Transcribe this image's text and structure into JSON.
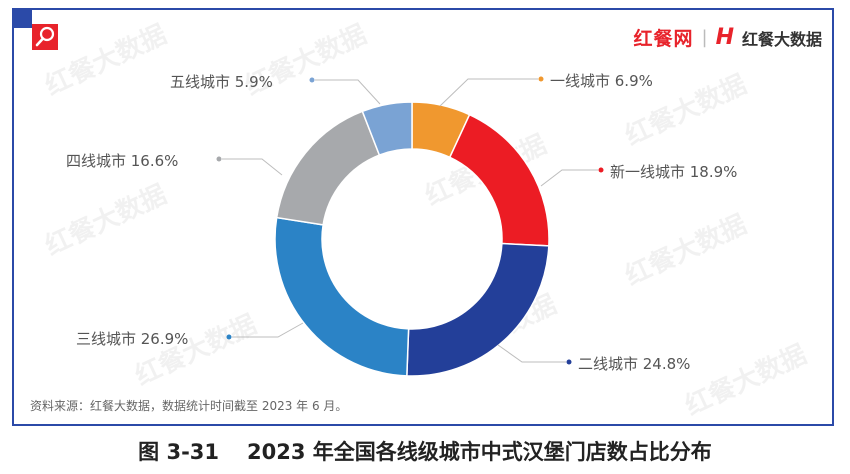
{
  "header": {
    "brand_primary": "红餐网",
    "brand_separator": "|",
    "brand_logo_glyph": "H",
    "brand_secondary": "红餐大数据",
    "search_icon": "search-icon"
  },
  "watermark": "红餐大数据",
  "footer": {
    "source": "资料来源：红餐大数据，数据统计时间截至 2023 年 6 月。"
  },
  "caption": {
    "number": "图 3-31",
    "title": "2023 年全国各线级城市中式汉堡门店数占比分布"
  },
  "labels": {
    "tier1": "一线城市 6.9%",
    "newtier1": "新一线城市 18.9%",
    "tier2": "二线城市 24.8%",
    "tier3": "三线城市 26.9%",
    "tier4": "四线城市 16.6%",
    "tier5": "五线城市 5.9%"
  },
  "chart_data": {
    "type": "pie",
    "subtype": "donut",
    "title": "2023 年全国各线级城市中式汉堡门店数占比分布",
    "categories": [
      "一线城市",
      "新一线城市",
      "二线城市",
      "三线城市",
      "四线城市",
      "五线城市"
    ],
    "values": [
      6.9,
      18.9,
      24.8,
      26.9,
      16.6,
      5.9
    ],
    "unit": "%",
    "colors": [
      "#f0982f",
      "#ec1c24",
      "#233f99",
      "#2b83c6",
      "#a7a9ac",
      "#7aa3d4"
    ],
    "start_angle": "12 o'clock, clockwise",
    "legend": "callout labels",
    "source": "红餐大数据"
  }
}
